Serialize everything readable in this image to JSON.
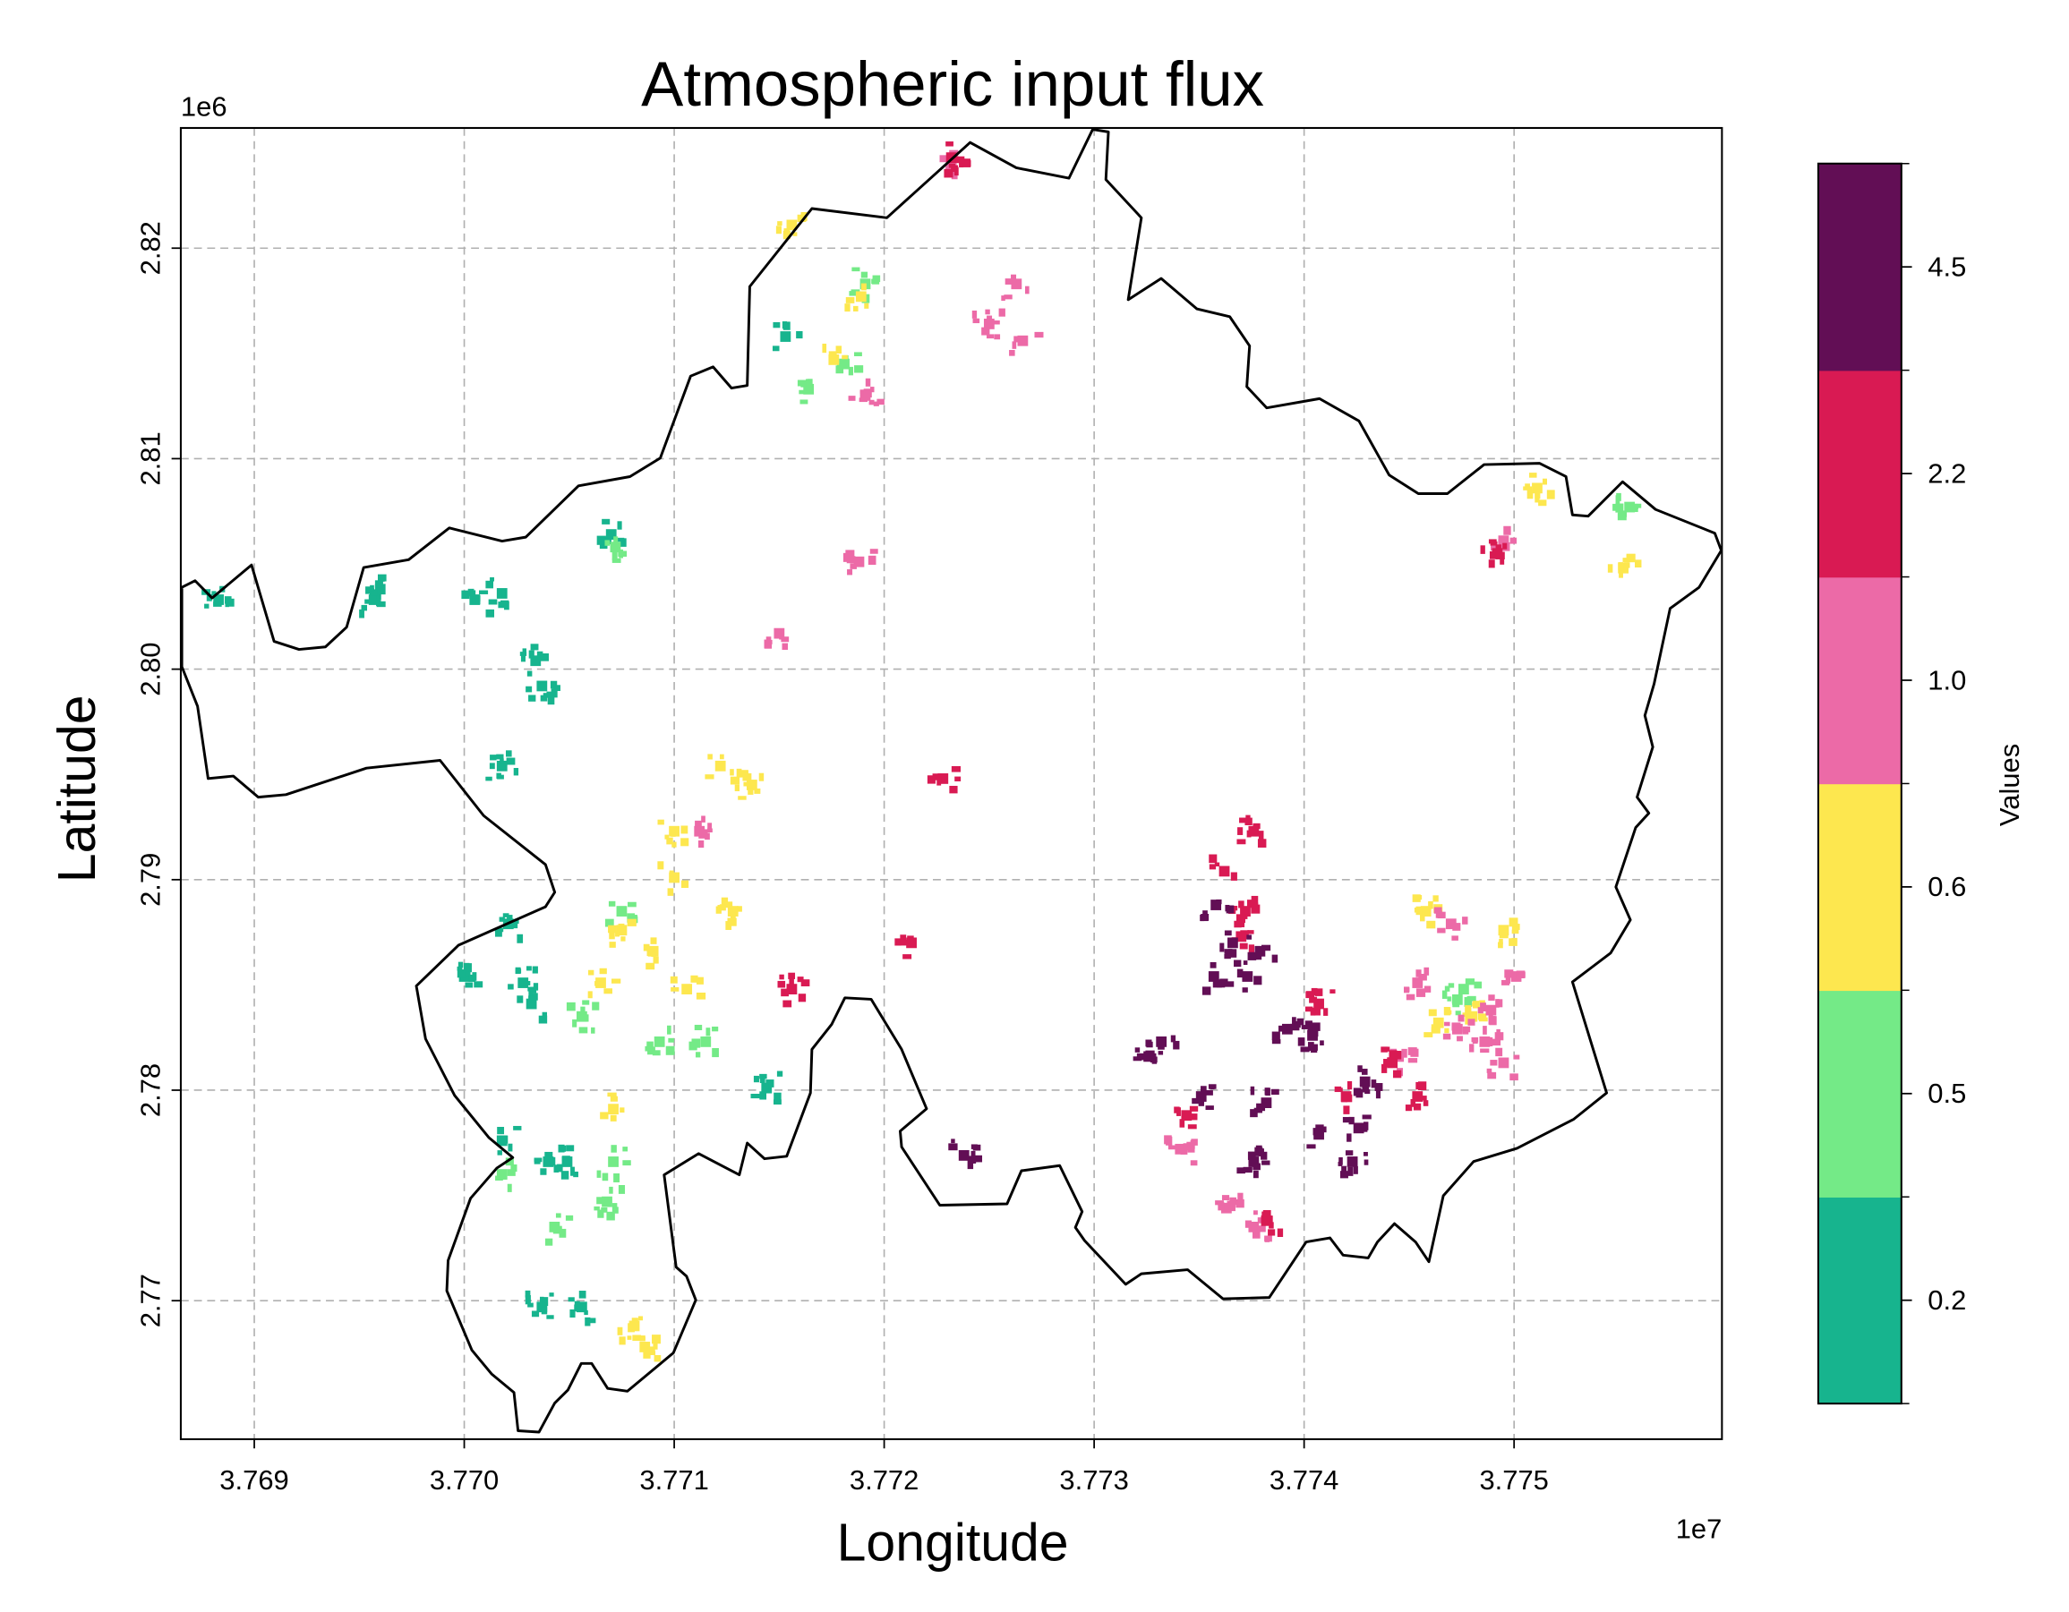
{
  "chart_data": {
    "type": "heatmap",
    "title": "Atmospheric input flux",
    "xlabel": "Longitude",
    "ylabel": "Latitude",
    "x_offset_label": "1e7",
    "y_offset_label": "1e6",
    "xlim": [
      3.76865,
      3.77599
    ],
    "ylim": [
      2.76342,
      2.82571
    ],
    "xticks": [
      3.769,
      3.77,
      3.771,
      3.772,
      3.773,
      3.774,
      3.775
    ],
    "xtick_labels": [
      "3.769",
      "3.770",
      "3.771",
      "3.772",
      "3.773",
      "3.774",
      "3.775"
    ],
    "yticks": [
      2.77,
      2.78,
      2.79,
      2.8,
      2.81,
      2.82
    ],
    "ytick_labels": [
      "2.77",
      "2.78",
      "2.79",
      "2.80",
      "2.81",
      "2.82"
    ],
    "grid": true,
    "grid_color": "#b0b0b0",
    "boundary_color": "#000000",
    "colorbar": {
      "label": "Values",
      "position": "right",
      "ticks": [
        "0.2",
        "0.5",
        "0.6",
        "1.0",
        "2.2",
        "4.5"
      ],
      "classes": [
        0.2,
        0.5,
        0.6,
        1.0,
        2.2,
        4.5
      ],
      "colors": [
        "#17b48e",
        "#74ea87",
        "#fde74f",
        "#ec6aa7",
        "#d91a53",
        "#620e55"
      ]
    },
    "boundary": [
      [
        3.768655,
        2.80389
      ],
      [
        3.768718,
        2.8042
      ],
      [
        3.768799,
        2.80338
      ],
      [
        3.768987,
        2.80495
      ],
      [
        3.769094,
        2.80132
      ],
      [
        3.769213,
        2.80094
      ],
      [
        3.769339,
        2.80106
      ],
      [
        3.76944,
        2.802
      ],
      [
        3.769521,
        2.80483
      ],
      [
        3.769735,
        2.8052
      ],
      [
        3.769929,
        2.80671
      ],
      [
        3.77018,
        2.80608
      ],
      [
        3.770293,
        2.80627
      ],
      [
        3.770544,
        2.80871
      ],
      [
        3.770789,
        2.80915
      ],
      [
        3.770934,
        2.81003
      ],
      [
        3.771078,
        2.81392
      ],
      [
        3.771185,
        2.81436
      ],
      [
        3.771273,
        2.81335
      ],
      [
        3.771348,
        2.81348
      ],
      [
        3.77136,
        2.81818
      ],
      [
        3.771656,
        2.82188
      ],
      [
        3.772013,
        2.82144
      ],
      [
        3.772409,
        2.82502
      ],
      [
        3.772629,
        2.82382
      ],
      [
        3.77288,
        2.82332
      ],
      [
        3.772993,
        2.82564
      ],
      [
        3.773068,
        2.82552
      ],
      [
        3.773056,
        2.82326
      ],
      [
        3.773225,
        2.82144
      ],
      [
        3.773162,
        2.81755
      ],
      [
        3.773319,
        2.81856
      ],
      [
        3.773489,
        2.81712
      ],
      [
        3.773646,
        2.81674
      ],
      [
        3.77374,
        2.81536
      ],
      [
        3.773727,
        2.81342
      ],
      [
        3.773822,
        2.81241
      ],
      [
        3.774073,
        2.81285
      ],
      [
        3.774261,
        2.81179
      ],
      [
        3.774405,
        2.80922
      ],
      [
        3.774544,
        2.80834
      ],
      [
        3.774682,
        2.80834
      ],
      [
        3.774857,
        2.80972
      ],
      [
        3.775121,
        2.80978
      ],
      [
        3.775247,
        2.80915
      ],
      [
        3.775278,
        2.80733
      ],
      [
        3.775353,
        2.80727
      ],
      [
        3.775517,
        2.8089
      ],
      [
        3.775674,
        2.80759
      ],
      [
        3.775956,
        2.80646
      ],
      [
        3.775987,
        2.80564
      ],
      [
        3.775881,
        2.80389
      ],
      [
        3.775743,
        2.80288
      ],
      [
        3.775667,
        2.79931
      ],
      [
        3.775623,
        2.7978
      ],
      [
        3.775661,
        2.7963
      ],
      [
        3.775586,
        2.79392
      ],
      [
        3.775642,
        2.79316
      ],
      [
        3.775579,
        2.79247
      ],
      [
        3.775485,
        2.78965
      ],
      [
        3.775554,
        2.78809
      ],
      [
        3.77546,
        2.78652
      ],
      [
        3.775278,
        2.78514
      ],
      [
        3.775441,
        2.77987
      ],
      [
        3.775284,
        2.77862
      ],
      [
        3.775014,
        2.77724
      ],
      [
        3.774807,
        2.77661
      ],
      [
        3.774663,
        2.77498
      ],
      [
        3.774594,
        2.77185
      ],
      [
        3.774531,
        2.77279
      ],
      [
        3.77443,
        2.77366
      ],
      [
        3.774349,
        2.77279
      ],
      [
        3.774305,
        2.77203
      ],
      [
        3.774186,
        2.77216
      ],
      [
        3.774123,
        2.77298
      ],
      [
        3.77401,
        2.77279
      ],
      [
        3.773834,
        2.77015
      ],
      [
        3.773614,
        2.77009
      ],
      [
        3.773445,
        2.77147
      ],
      [
        3.773225,
        2.77128
      ],
      [
        3.77315,
        2.77078
      ],
      [
        3.772955,
        2.77285
      ],
      [
        3.772911,
        2.77348
      ],
      [
        3.772943,
        2.77423
      ],
      [
        3.772836,
        2.77642
      ],
      [
        3.772654,
        2.77617
      ],
      [
        3.772585,
        2.7746
      ],
      [
        3.772265,
        2.77454
      ],
      [
        3.772083,
        2.7773
      ],
      [
        3.772076,
        2.77805
      ],
      [
        3.772202,
        2.77912
      ],
      [
        3.772083,
        2.78194
      ],
      [
        3.771938,
        2.78432
      ],
      [
        3.771813,
        2.78439
      ],
      [
        3.77175,
        2.78313
      ],
      [
        3.771656,
        2.78194
      ],
      [
        3.771649,
        2.77987
      ],
      [
        3.771536,
        2.77686
      ],
      [
        3.77143,
        2.77674
      ],
      [
        3.771348,
        2.77749
      ],
      [
        3.77131,
        2.77598
      ],
      [
        3.77126,
        2.77624
      ],
      [
        3.771116,
        2.77699
      ],
      [
        3.770952,
        2.77598
      ],
      [
        3.771009,
        2.7716
      ],
      [
        3.771059,
        2.77116
      ],
      [
        3.771103,
        2.77003
      ],
      [
        3.770996,
        2.76752
      ],
      [
        3.770777,
        2.7657
      ],
      [
        3.770683,
        2.76583
      ],
      [
        3.770607,
        2.76702
      ],
      [
        3.770557,
        2.76702
      ],
      [
        3.770494,
        2.76576
      ],
      [
        3.770431,
        2.76514
      ],
      [
        3.770356,
        2.76376
      ],
      [
        3.770256,
        2.76382
      ],
      [
        3.770237,
        2.76564
      ],
      [
        3.77013,
        2.76652
      ],
      [
        3.770036,
        2.76765
      ],
      [
        3.769917,
        2.77047
      ],
      [
        3.769923,
        2.77191
      ],
      [
        3.77003,
        2.77486
      ],
      [
        3.770155,
        2.7763
      ],
      [
        3.770231,
        2.7768
      ],
      [
        3.770118,
        2.77774
      ],
      [
        3.769954,
        2.77975
      ],
      [
        3.769816,
        2.78244
      ],
      [
        3.769772,
        2.78495
      ],
      [
        3.769973,
        2.78689
      ],
      [
        3.770387,
        2.78871
      ],
      [
        3.770431,
        2.7894
      ],
      [
        3.770387,
        2.79072
      ],
      [
        3.770092,
        2.79304
      ],
      [
        3.769885,
        2.79567
      ],
      [
        3.769534,
        2.7953
      ],
      [
        3.769151,
        2.79404
      ],
      [
        3.769019,
        2.79392
      ],
      [
        3.7689,
        2.79492
      ],
      [
        3.76878,
        2.7948
      ],
      [
        3.76873,
        2.79824
      ],
      [
        3.768655,
        2.80012
      ]
    ],
    "cells": [
      [
        3.7696,
        2.8038,
        0.2
      ],
      [
        3.76957,
        2.8033,
        0.2
      ],
      [
        3.77005,
        2.8033,
        0.2
      ],
      [
        3.77018,
        2.8036,
        0.2
      ],
      [
        3.77034,
        2.8004,
        0.2
      ],
      [
        3.77037,
        2.7992,
        0.2
      ],
      [
        3.77018,
        2.7954,
        0.2
      ],
      [
        3.77021,
        2.7879,
        0.2
      ],
      [
        3.77,
        2.7854,
        0.2
      ],
      [
        3.77032,
        2.7841,
        0.2
      ],
      [
        3.77028,
        2.7851,
        0.2
      ],
      [
        3.7704,
        2.7766,
        0.2
      ],
      [
        3.77049,
        2.7766,
        0.2
      ],
      [
        3.77037,
        2.7697,
        0.2
      ],
      [
        3.77056,
        2.7697,
        0.2
      ],
      [
        3.77144,
        2.7801,
        0.2
      ],
      [
        3.77153,
        2.8158,
        0.2
      ],
      [
        3.7707,
        2.8064,
        0.2
      ],
      [
        3.76883,
        2.8033,
        0.2
      ],
      [
        3.77018,
        2.7776,
        0.2
      ],
      [
        3.77181,
        2.8145,
        0.5
      ],
      [
        3.77191,
        2.8183,
        0.5
      ],
      [
        3.77164,
        2.8133,
        0.5
      ],
      [
        3.77072,
        2.8058,
        0.5
      ],
      [
        3.77056,
        2.7835,
        0.5
      ],
      [
        3.77068,
        2.7747,
        0.5
      ],
      [
        3.77071,
        2.7766,
        0.5
      ],
      [
        3.77093,
        2.7823,
        0.5
      ],
      [
        3.77115,
        2.7823,
        0.5
      ],
      [
        3.77075,
        2.7885,
        0.5
      ],
      [
        3.77473,
        2.7843,
        0.5
      ],
      [
        3.77476,
        2.7848,
        0.5
      ],
      [
        3.77555,
        2.8077,
        0.5
      ],
      [
        3.77018,
        2.776,
        0.5
      ],
      [
        3.77043,
        2.7735,
        0.5
      ],
      [
        3.77189,
        2.8177,
        0.6
      ],
      [
        3.77176,
        2.8147,
        0.6
      ],
      [
        3.77122,
        2.7954,
        0.6
      ],
      [
        3.77137,
        2.7945,
        0.6
      ],
      [
        3.771,
        2.7901,
        0.6
      ],
      [
        3.77128,
        2.7885,
        0.6
      ],
      [
        3.77075,
        2.7876,
        0.6
      ],
      [
        3.7709,
        2.7866,
        0.6
      ],
      [
        3.77065,
        2.7851,
        0.6
      ],
      [
        3.77106,
        2.7848,
        0.6
      ],
      [
        3.77071,
        2.7791,
        0.6
      ],
      [
        3.77081,
        2.7688,
        0.6
      ],
      [
        3.77086,
        2.7678,
        0.6
      ],
      [
        3.77464,
        2.7832,
        0.6
      ],
      [
        3.7748,
        2.7835,
        0.6
      ],
      [
        3.77495,
        2.7876,
        0.6
      ],
      [
        3.77511,
        2.8086,
        0.6
      ],
      [
        3.77156,
        2.8211,
        0.6
      ],
      [
        3.77458,
        2.7885,
        0.6
      ],
      [
        3.77552,
        2.8048,
        0.6
      ],
      [
        3.771,
        2.7923,
        0.6
      ],
      [
        3.7725,
        2.8164,
        1.0
      ],
      [
        3.77266,
        2.8156,
        1.0
      ],
      [
        3.77263,
        2.8183,
        1.0
      ],
      [
        3.77191,
        2.813,
        1.0
      ],
      [
        3.77454,
        2.7851,
        1.0
      ],
      [
        3.77473,
        2.7829,
        1.0
      ],
      [
        3.77486,
        2.7823,
        1.0
      ],
      [
        3.77495,
        2.7813,
        1.0
      ],
      [
        3.7747,
        2.7879,
        1.0
      ],
      [
        3.77489,
        2.7838,
        1.0
      ],
      [
        3.77445,
        2.7816,
        1.0
      ],
      [
        3.77501,
        2.7854,
        1.0
      ],
      [
        3.77363,
        2.7744,
        1.0
      ],
      [
        3.77341,
        2.7772,
        1.0
      ],
      [
        3.77376,
        2.7735,
        1.0
      ],
      [
        3.77232,
        2.824,
        1.0
      ],
      [
        3.77188,
        2.8051,
        1.0
      ],
      [
        3.77495,
        2.8061,
        1.0
      ],
      [
        3.77112,
        2.7923,
        1.0
      ],
      [
        3.7715,
        2.8017,
        1.0
      ],
      [
        3.77228,
        2.7948,
        2.2
      ],
      [
        3.77362,
        2.7904,
        2.2
      ],
      [
        3.77372,
        2.7885,
        2.2
      ],
      [
        3.77376,
        2.7923,
        2.2
      ],
      [
        3.7737,
        2.7873,
        2.2
      ],
      [
        3.77407,
        2.7841,
        2.2
      ],
      [
        3.77442,
        2.7813,
        2.2
      ],
      [
        3.77454,
        2.7797,
        2.2
      ],
      [
        3.77382,
        2.7738,
        2.2
      ],
      [
        3.77344,
        2.7788,
        2.2
      ],
      [
        3.77232,
        2.8243,
        2.2
      ],
      [
        3.77492,
        2.8055,
        2.2
      ],
      [
        3.77156,
        2.7848,
        2.2
      ],
      [
        3.77213,
        2.787,
        2.2
      ],
      [
        3.7742,
        2.7797,
        2.2
      ],
      [
        3.77358,
        2.7888,
        4.5
      ],
      [
        3.77366,
        2.787,
        4.5
      ],
      [
        3.77379,
        2.7866,
        4.5
      ],
      [
        3.77373,
        2.7854,
        4.5
      ],
      [
        3.77357,
        2.7854,
        4.5
      ],
      [
        3.77351,
        2.7797,
        4.5
      ],
      [
        3.77382,
        2.7794,
        4.5
      ],
      [
        3.77429,
        2.7804,
        4.5
      ],
      [
        3.77426,
        2.7782,
        4.5
      ],
      [
        3.77407,
        2.7779,
        4.5
      ],
      [
        3.77423,
        2.7766,
        4.5
      ],
      [
        3.77376,
        2.7766,
        4.5
      ],
      [
        3.77332,
        2.7823,
        4.5
      ],
      [
        3.77392,
        2.7829,
        4.5
      ],
      [
        3.77404,
        2.7826,
        4.5
      ],
      [
        3.77238,
        2.7769,
        4.5
      ],
      [
        3.77326,
        2.7816,
        4.5
      ]
    ]
  }
}
